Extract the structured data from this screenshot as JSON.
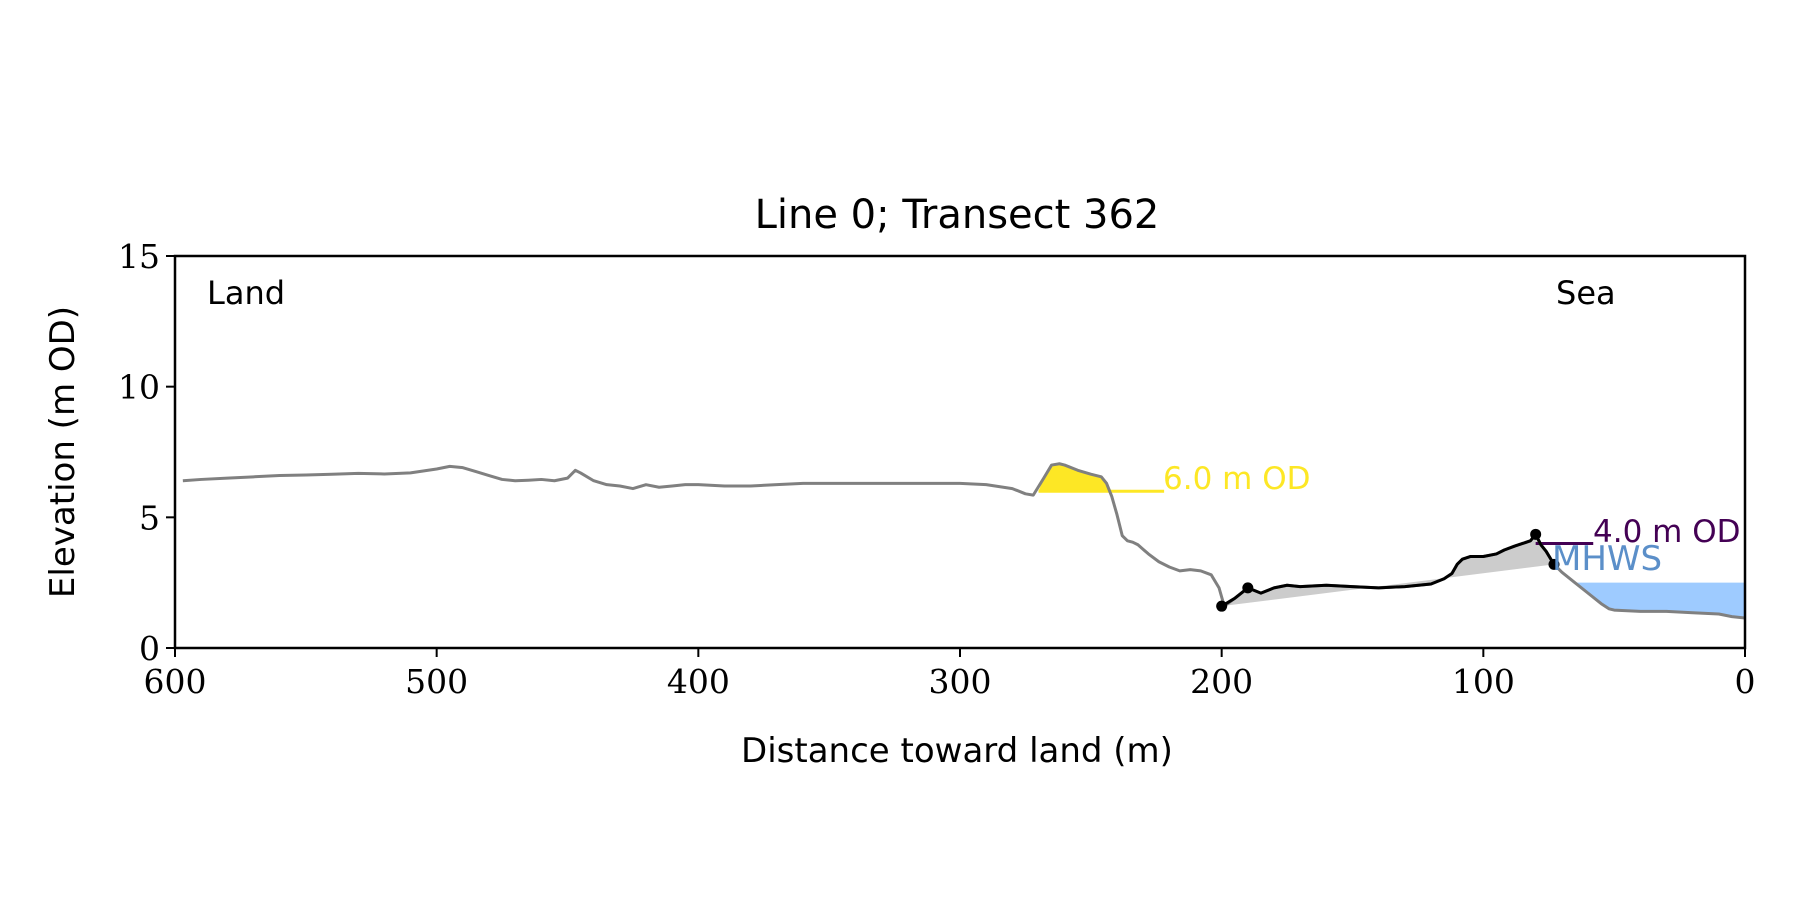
{
  "colors": {
    "profile": "#808080",
    "fill_grey": "#cccccc",
    "crest_fill": "#fde725",
    "crest_label": "#fde725",
    "low_label": "#440154",
    "mhws_fill": "#9ecbff",
    "mhws_label": "#5b8fc9",
    "axis": "#000000"
  },
  "chart_data": {
    "type": "line",
    "title": "Line 0; Transect 362",
    "xlabel": "Distance toward land (m)",
    "ylabel": "Elevation (m OD)",
    "xlim": [
      600,
      0
    ],
    "ylim": [
      0,
      15
    ],
    "x_reversed": true,
    "xticks": [
      600,
      500,
      400,
      300,
      200,
      100,
      0
    ],
    "yticks": [
      0,
      5,
      10,
      15
    ],
    "xtick_labels": [
      "600",
      "500",
      "400",
      "300",
      "200",
      "100",
      "0"
    ],
    "ytick_labels": [
      "0",
      "5",
      "10",
      "15"
    ],
    "grid": false,
    "annotations": {
      "land": "Land",
      "sea": "Sea",
      "crest_level": "6.0 m OD",
      "low_level": "4.0 m OD",
      "mhws": "MHWS"
    },
    "levels": {
      "crest": 6.0,
      "low": 4.0,
      "mhws": 2.5
    },
    "crest_line_x": [
      270,
      222
    ],
    "low_line_x": [
      80,
      58
    ],
    "profile": {
      "x": [
        597,
        590,
        580,
        570,
        560,
        550,
        540,
        530,
        520,
        510,
        500,
        495,
        490,
        485,
        480,
        475,
        470,
        465,
        460,
        455,
        450,
        447,
        445,
        440,
        435,
        430,
        425,
        420,
        415,
        410,
        405,
        400,
        390,
        380,
        370,
        360,
        340,
        320,
        300,
        290,
        280,
        275,
        272,
        268,
        265,
        262,
        260,
        255,
        250,
        246,
        244,
        242,
        240,
        238,
        236,
        234,
        232,
        228,
        224,
        220,
        216,
        212,
        208,
        204,
        201,
        199,
        195,
        190,
        185,
        180,
        175,
        170,
        160,
        150,
        140,
        130,
        120,
        115,
        112,
        110,
        108,
        105,
        100,
        95,
        92,
        88,
        85,
        82,
        80,
        78,
        76,
        73,
        70,
        65,
        60,
        55,
        52,
        50,
        40,
        30,
        20,
        10,
        5,
        0
      ],
      "y": [
        6.4,
        6.45,
        6.5,
        6.55,
        6.6,
        6.62,
        6.65,
        6.68,
        6.66,
        6.7,
        6.85,
        6.95,
        6.9,
        6.75,
        6.6,
        6.45,
        6.4,
        6.42,
        6.45,
        6.4,
        6.5,
        6.8,
        6.7,
        6.4,
        6.25,
        6.2,
        6.1,
        6.25,
        6.15,
        6.2,
        6.25,
        6.25,
        6.2,
        6.2,
        6.25,
        6.3,
        6.3,
        6.3,
        6.3,
        6.25,
        6.1,
        5.9,
        5.85,
        6.5,
        7.0,
        7.05,
        7.0,
        6.8,
        6.65,
        6.55,
        6.3,
        5.8,
        5.1,
        4.3,
        4.1,
        4.05,
        3.95,
        3.6,
        3.3,
        3.1,
        2.95,
        3.0,
        2.95,
        2.8,
        2.3,
        1.6,
        1.9,
        2.3,
        2.1,
        2.3,
        2.4,
        2.35,
        2.4,
        2.35,
        2.3,
        2.35,
        2.45,
        2.65,
        2.85,
        3.2,
        3.4,
        3.5,
        3.5,
        3.6,
        3.75,
        3.9,
        4.0,
        4.1,
        4.35,
        3.95,
        3.7,
        3.2,
        2.9,
        2.5,
        2.1,
        1.7,
        1.5,
        1.45,
        1.4,
        1.4,
        1.35,
        1.3,
        1.2,
        1.15
      ]
    },
    "surveyed": {
      "x": [
        200,
        195,
        190,
        185,
        180,
        175,
        170,
        160,
        150,
        140,
        130,
        120,
        115,
        112,
        110,
        108,
        105,
        100,
        95,
        92,
        88,
        85,
        82,
        80,
        78,
        76,
        73
      ],
      "y": [
        1.6,
        1.9,
        2.3,
        2.1,
        2.3,
        2.4,
        2.35,
        2.4,
        2.35,
        2.3,
        2.35,
        2.45,
        2.65,
        2.85,
        3.2,
        3.4,
        3.5,
        3.5,
        3.6,
        3.75,
        3.9,
        4.0,
        4.1,
        4.35,
        3.95,
        3.7,
        3.2
      ]
    },
    "markers": {
      "x": [
        200,
        190,
        80,
        73
      ],
      "y": [
        1.6,
        2.3,
        4.35,
        3.2
      ]
    }
  }
}
